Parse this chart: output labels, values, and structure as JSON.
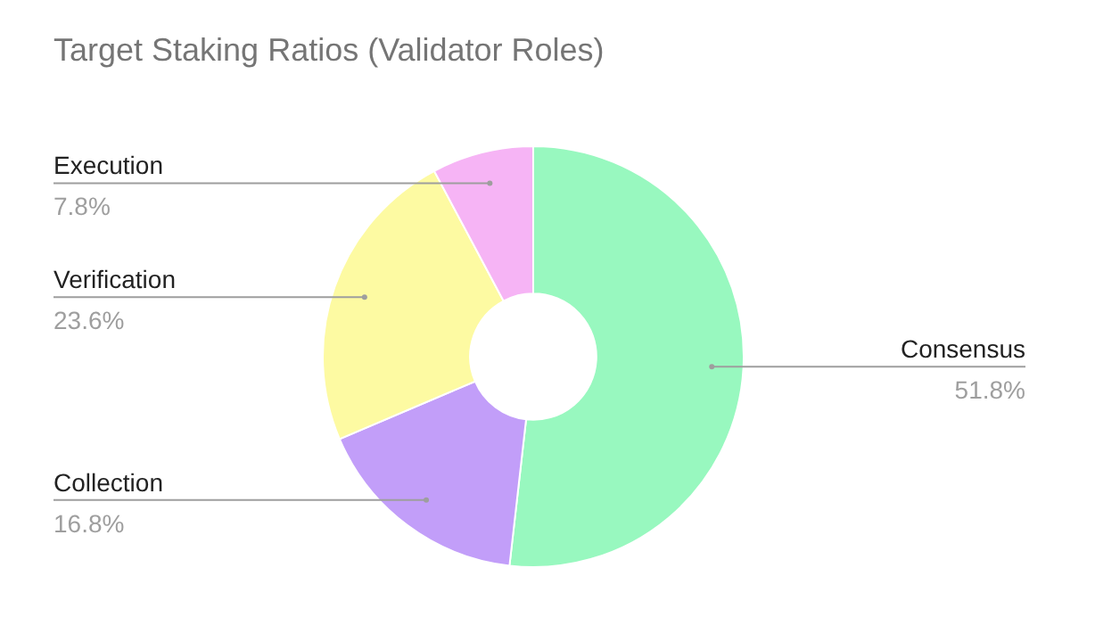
{
  "chart_data": {
    "type": "donut",
    "title": "Target Staking Ratios (Validator Roles)",
    "categories": [
      "Consensus",
      "Collection",
      "Verification",
      "Execution"
    ],
    "values": [
      51.8,
      16.8,
      23.6,
      7.8
    ],
    "colors": [
      "#98f8bf",
      "#c29ef9",
      "#fdfaa2",
      "#f6b4f5"
    ],
    "value_labels": [
      "51.8%",
      "16.8%",
      "23.6%",
      "7.8%"
    ]
  }
}
